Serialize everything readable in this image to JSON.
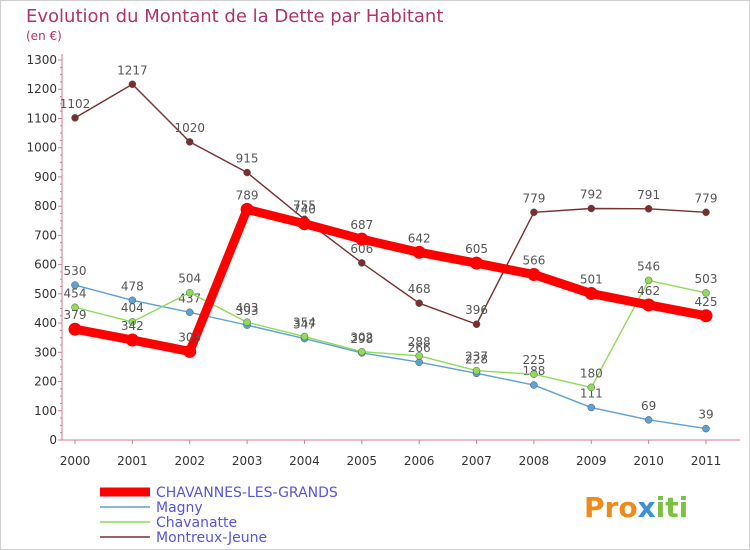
{
  "chart_data": {
    "type": "line",
    "title": "Evolution du Montant de la Dette par Habitant",
    "subtitle": "(en €)",
    "x": [
      "2000",
      "2001",
      "2002",
      "2003",
      "2004",
      "2005",
      "2006",
      "2007",
      "2008",
      "2009",
      "2010",
      "2011"
    ],
    "y_ticks": [
      "0",
      "100",
      "200",
      "300",
      "400",
      "500",
      "600",
      "700",
      "800",
      "900",
      "1000",
      "1100",
      "1200",
      "1300"
    ],
    "ylim": [
      0,
      1300
    ],
    "grid": false,
    "legend_position": "bottom-left",
    "series": [
      {
        "name": "CHAVANNES-LES-GRANDS",
        "color": "#ff0000",
        "values": [
          379,
          342,
          303,
          789,
          740,
          687,
          642,
          605,
          566,
          501,
          462,
          425
        ]
      },
      {
        "name": "Magny",
        "color": "#5ea1d6",
        "values": [
          530,
          478,
          437,
          393,
          347,
          298,
          266,
          228,
          188,
          111,
          69,
          39
        ]
      },
      {
        "name": "Chavanatte",
        "color": "#8edc5a",
        "values": [
          454,
          404,
          504,
          403,
          354,
          302,
          288,
          237,
          225,
          180,
          546,
          503
        ]
      },
      {
        "name": "Montreux-Jeune",
        "color": "#7a2e2e",
        "values": [
          1102,
          1217,
          1020,
          915,
          755,
          606,
          468,
          396,
          779,
          792,
          791,
          779
        ]
      }
    ]
  },
  "brand": {
    "text": "Proxiti",
    "letters": [
      {
        "ch": "P",
        "color": "#f08a1c"
      },
      {
        "ch": "r",
        "color": "#f08a1c"
      },
      {
        "ch": "o",
        "color": "#f08a1c"
      },
      {
        "ch": "x",
        "color": "#3a8fd6"
      },
      {
        "ch": "i",
        "color": "#7cc242"
      },
      {
        "ch": "t",
        "color": "#7cc242"
      },
      {
        "ch": "i",
        "color": "#7cc242"
      }
    ]
  }
}
